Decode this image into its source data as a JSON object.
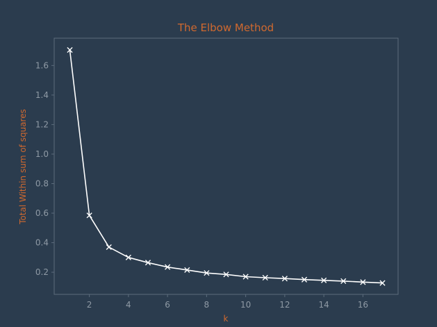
{
  "colors": {
    "background": "#2b3c4e",
    "axes_frame": "#5c6c7c",
    "title": "#d0692f",
    "axis_label": "#d0692f",
    "tick_label": "#8f9aa5",
    "line": "#ffffff",
    "marker": "#ffffff"
  },
  "chart_data": {
    "type": "line",
    "title": "The Elbow Method",
    "xlabel": "k",
    "ylabel": "Total Within sum of squares",
    "xlim": [
      0.2,
      17.8
    ],
    "ylim": [
      0.05,
      1.785
    ],
    "xticks": [
      2,
      4,
      6,
      8,
      10,
      12,
      14,
      16
    ],
    "yticks": [
      0.2,
      0.4,
      0.6,
      0.8,
      1.0,
      1.2,
      1.4,
      1.6
    ],
    "ytick_labels": [
      "0.2",
      "0.4",
      "0.6",
      "0.8",
      "1.0",
      "1.2",
      "1.4",
      "1.6"
    ],
    "grid": false,
    "marker": "x",
    "series": [
      {
        "x": [
          1,
          2,
          3,
          4,
          5,
          6,
          7,
          8,
          9,
          10,
          11,
          12,
          13,
          14,
          15,
          16,
          17
        ],
        "y": [
          1.705,
          0.585,
          0.37,
          0.3,
          0.265,
          0.235,
          0.215,
          0.195,
          0.185,
          0.17,
          0.163,
          0.157,
          0.15,
          0.145,
          0.14,
          0.133,
          0.127
        ]
      }
    ]
  }
}
